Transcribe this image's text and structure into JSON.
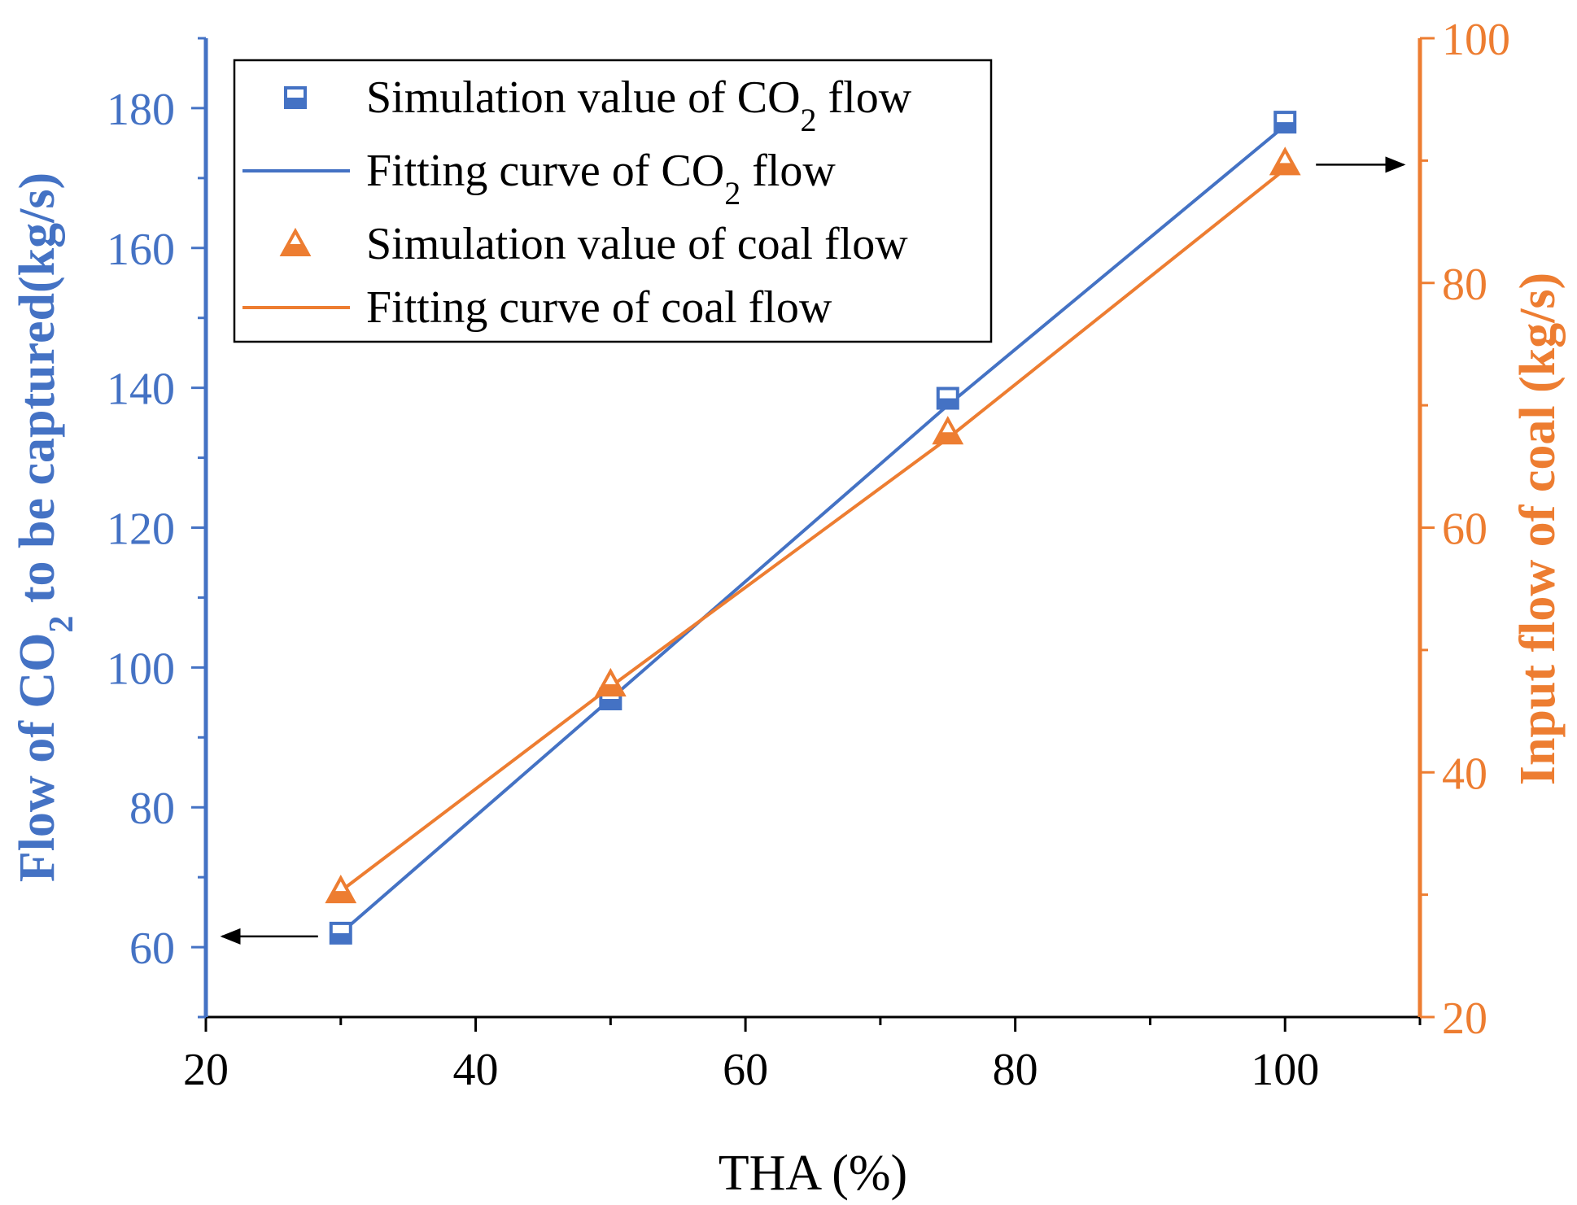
{
  "chart_data": {
    "type": "line",
    "xlabel": "THA (%)",
    "x_ticks": [
      20,
      40,
      60,
      80,
      100
    ],
    "xlim": [
      20,
      110
    ],
    "y_left": {
      "label_parts": [
        "Flow of CO",
        "2",
        " to be captured(kg/s)"
      ],
      "ticks": [
        60,
        80,
        100,
        120,
        140,
        160,
        180
      ],
      "lim": [
        50,
        190
      ],
      "color": "#4472C4"
    },
    "y_right": {
      "label": "Input flow of coal (kg/s)",
      "ticks": [
        20,
        40,
        60,
        80,
        100
      ],
      "lim": [
        20,
        100
      ],
      "color": "#ED7D31"
    },
    "series": [
      {
        "id": "co2",
        "name_parts": [
          "Simulation value of CO",
          "2",
          " flow"
        ],
        "fit_name_parts": [
          "Fitting curve of CO",
          "2",
          " flow"
        ],
        "axis": "left",
        "marker": "square",
        "color": "#4472C4",
        "x": [
          30,
          50,
          75,
          100
        ],
        "sim": [
          62,
          95.5,
          138.5,
          178
        ],
        "fit": [
          62,
          95.5,
          137.5,
          177.5
        ]
      },
      {
        "id": "coal",
        "name_parts": [
          "Simulation value of coal flow"
        ],
        "fit_name_parts": [
          "Fitting curve of coal flow"
        ],
        "axis": "right",
        "marker": "triangle",
        "color": "#ED7D31",
        "x": [
          30,
          50,
          75,
          100
        ],
        "sim": [
          30.3,
          47.2,
          67.8,
          89.8
        ],
        "fit": [
          30.3,
          47.0,
          67.3,
          89.3
        ]
      }
    ],
    "legend_position": "top-left"
  }
}
